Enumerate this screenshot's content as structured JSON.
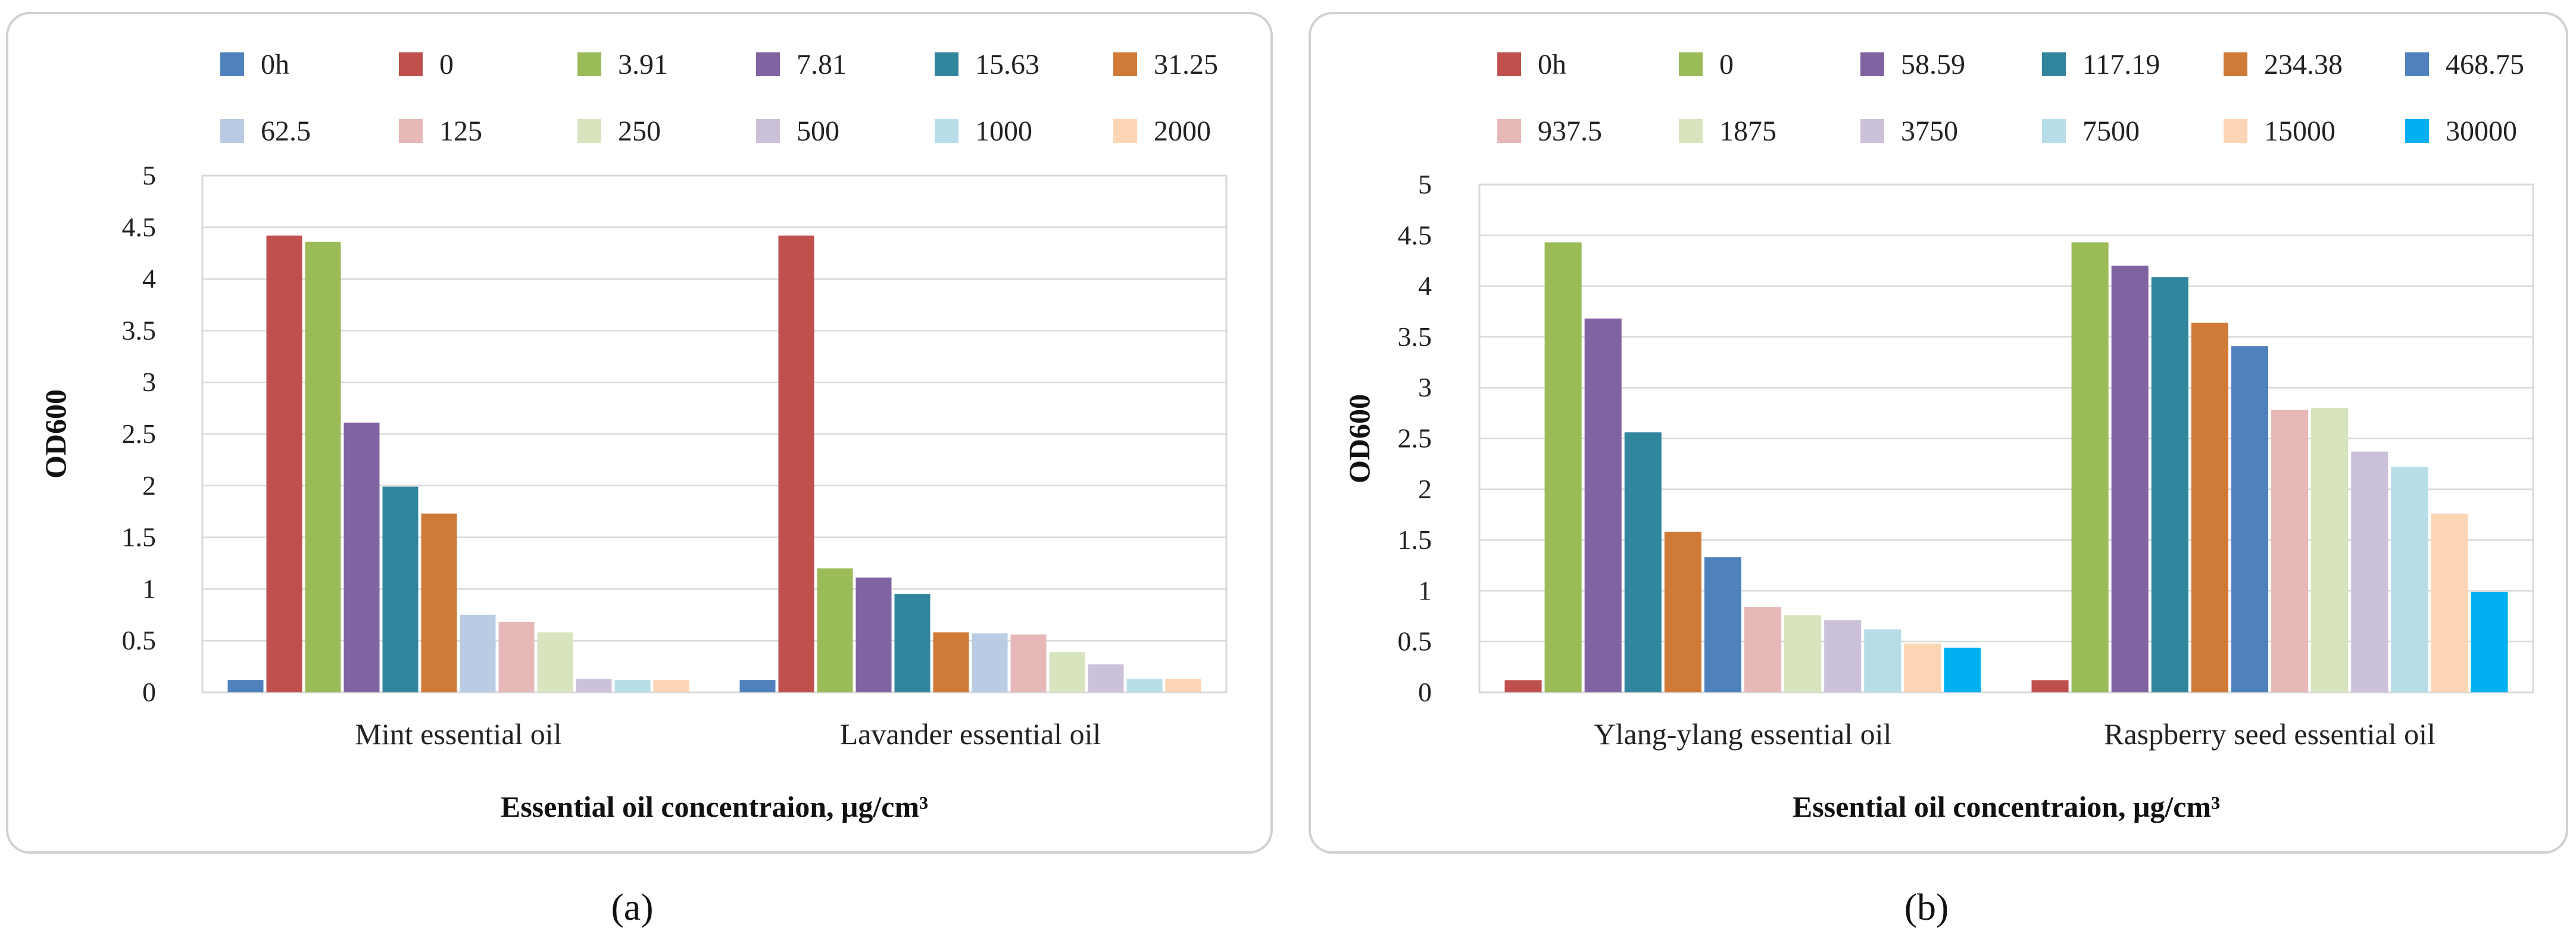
{
  "chart_data": [
    {
      "type": "bar",
      "caption": "(a)",
      "xlabel": "Essential oil concentraion, μg/cm³",
      "ylabel": "OD600",
      "ylim": [
        0,
        5
      ],
      "yticks": [
        "0",
        "0.5",
        "1",
        "1.5",
        "2",
        "2.5",
        "3",
        "3.5",
        "4",
        "4.5",
        "5"
      ],
      "grid": true,
      "legend_position": "top",
      "categories": [
        "Mint essential oil",
        "Lavander essential oil"
      ],
      "series": [
        {
          "name": "0h",
          "color": "#4f81bd",
          "values": [
            0.12,
            0.12
          ]
        },
        {
          "name": "0",
          "color": "#c0504d",
          "values": [
            4.42,
            4.42
          ]
        },
        {
          "name": "3.91",
          "color": "#9bbb59",
          "values": [
            4.36,
            1.2
          ]
        },
        {
          "name": "7.81",
          "color": "#8064a2",
          "values": [
            2.61,
            1.11
          ]
        },
        {
          "name": "15.63",
          "color": "#31859c",
          "values": [
            1.99,
            0.95
          ]
        },
        {
          "name": "31.25",
          "color": "#d07a37",
          "values": [
            1.73,
            0.58
          ]
        },
        {
          "name": "62.5",
          "color": "#b9cce4",
          "values": [
            0.75,
            0.57
          ]
        },
        {
          "name": "125",
          "color": "#e6b9b8",
          "values": [
            0.68,
            0.56
          ]
        },
        {
          "name": "250",
          "color": "#d7e4bd",
          "values": [
            0.58,
            0.39
          ]
        },
        {
          "name": "500",
          "color": "#ccc1da",
          "values": [
            0.13,
            0.27
          ]
        },
        {
          "name": "1000",
          "color": "#b7dee8",
          "values": [
            0.12,
            0.13
          ]
        },
        {
          "name": "2000",
          "color": "#fcd5b5",
          "values": [
            0.12,
            0.13
          ]
        }
      ]
    },
    {
      "type": "bar",
      "caption": "(b)",
      "xlabel": "Essential oil concentraion, μg/cm³",
      "ylabel": "OD600",
      "ylim": [
        0,
        5
      ],
      "yticks": [
        "0",
        "0.5",
        "1",
        "1.5",
        "2",
        "2.5",
        "3",
        "3.5",
        "4",
        "4.5",
        "5"
      ],
      "grid": true,
      "legend_position": "top",
      "categories": [
        "Ylang-ylang essential oil",
        "Raspberry seed essential oil"
      ],
      "series": [
        {
          "name": "0h",
          "color": "#c0504d",
          "values": [
            0.12,
            0.12
          ]
        },
        {
          "name": "0",
          "color": "#9bbb59",
          "values": [
            4.43,
            4.43
          ]
        },
        {
          "name": "58.59",
          "color": "#8064a2",
          "values": [
            3.68,
            4.2
          ]
        },
        {
          "name": "117.19",
          "color": "#31859c",
          "values": [
            2.56,
            4.09
          ]
        },
        {
          "name": "234.38",
          "color": "#d07a37",
          "values": [
            1.58,
            3.64
          ]
        },
        {
          "name": "468.75",
          "color": "#4f81bd",
          "values": [
            1.33,
            3.41
          ]
        },
        {
          "name": "937.5",
          "color": "#e6b9b8",
          "values": [
            0.84,
            2.78
          ]
        },
        {
          "name": "1875",
          "color": "#d7e4bd",
          "values": [
            0.76,
            2.8
          ]
        },
        {
          "name": "3750",
          "color": "#ccc1da",
          "values": [
            0.71,
            2.37
          ]
        },
        {
          "name": "7500",
          "color": "#b7dee8",
          "values": [
            0.62,
            2.22
          ]
        },
        {
          "name": "15000",
          "color": "#fcd5b5",
          "values": [
            0.48,
            1.76
          ]
        },
        {
          "name": "30000",
          "color": "#00b0f0",
          "values": [
            0.44,
            0.99
          ]
        }
      ]
    }
  ]
}
